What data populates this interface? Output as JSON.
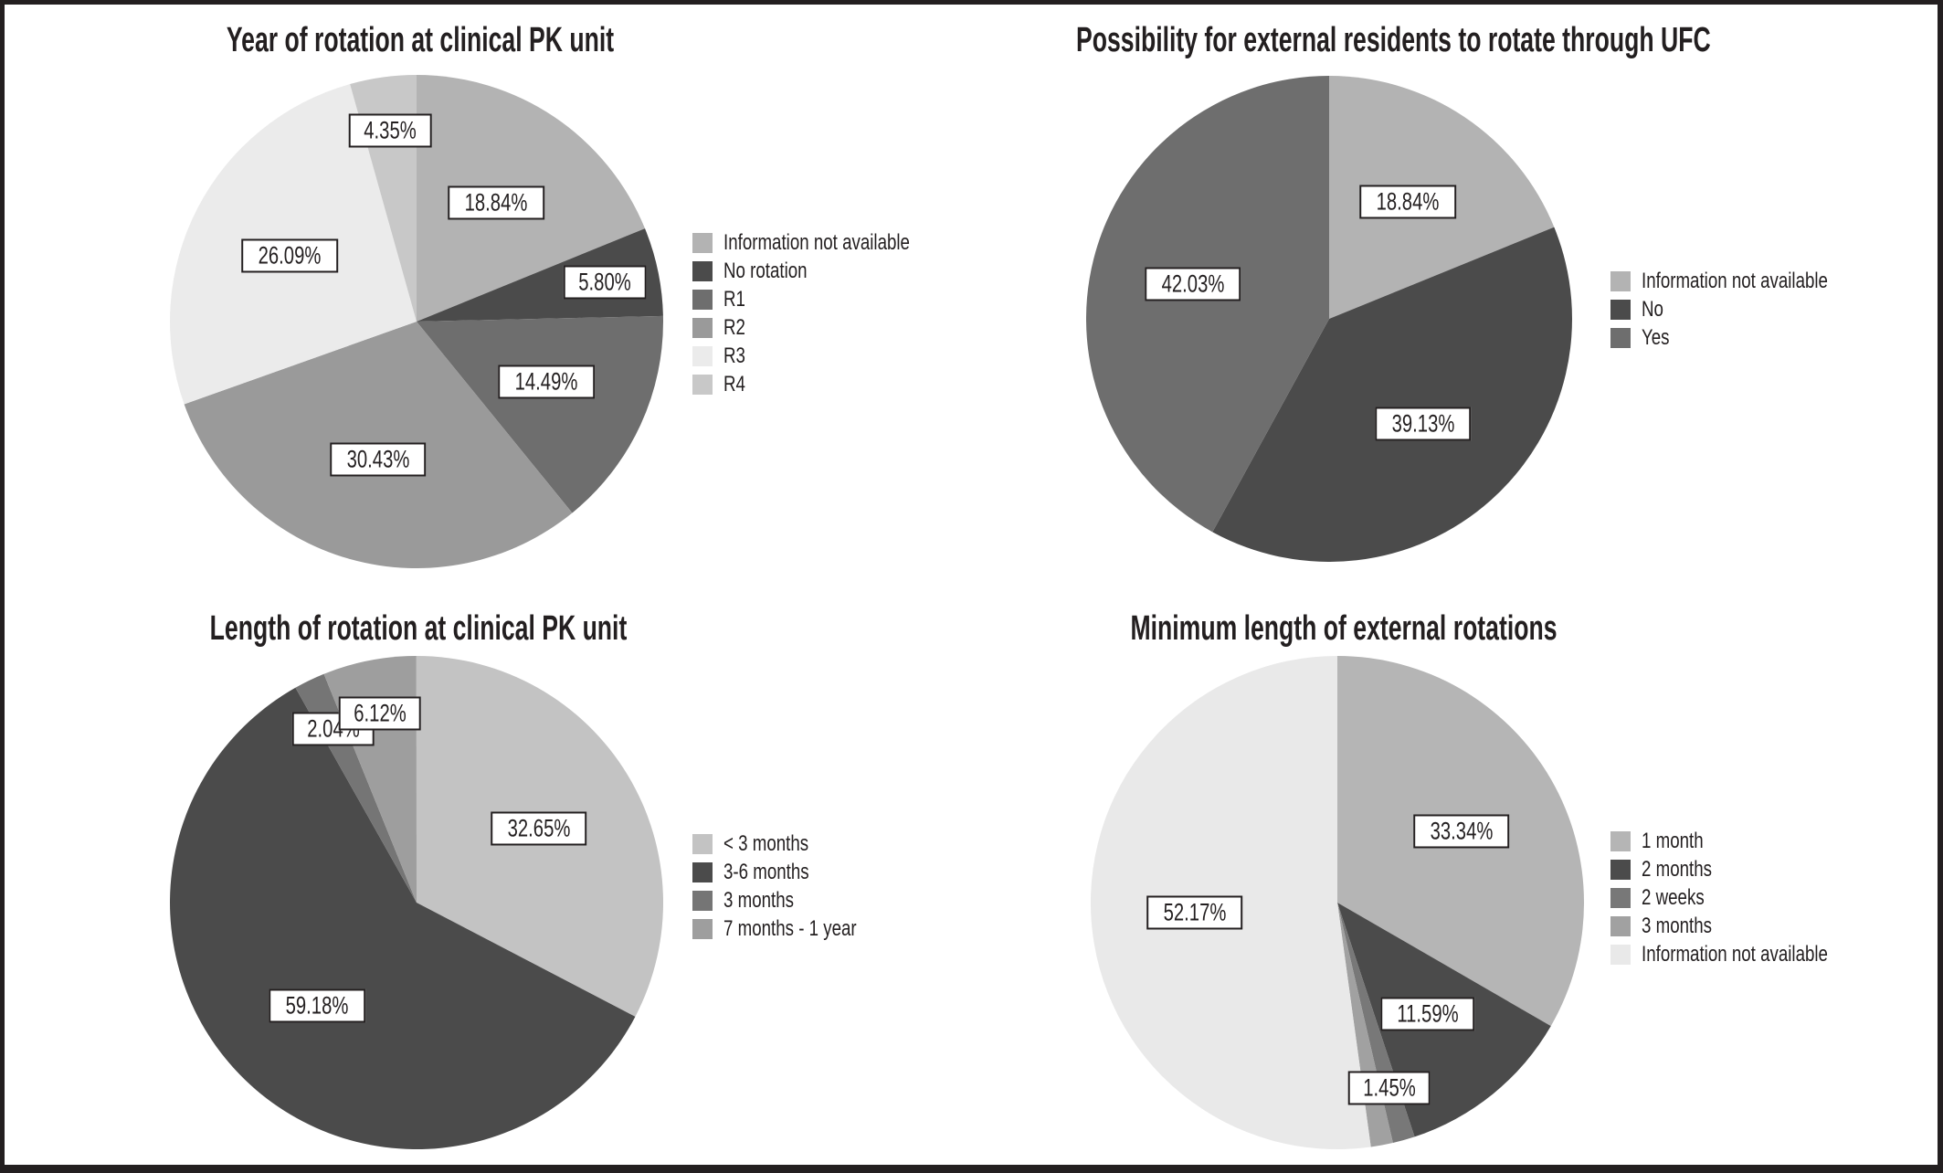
{
  "figure": {
    "background": "#ffffff",
    "frame_color": "#231f20",
    "label_box_border": "#231f20",
    "label_box_fill": "#ffffff"
  },
  "chart_data": [
    {
      "type": "pie",
      "title": "Year of rotation at clinical PK unit",
      "legend_position": "right",
      "start_angle_deg": 0,
      "direction": "clockwise",
      "slices": [
        {
          "name": "Information not available",
          "value": 18.84,
          "label": "18.84%",
          "color": "#b3b3b3"
        },
        {
          "name": "No rotation",
          "value": 5.8,
          "label": "5.80%",
          "color": "#4b4b4b"
        },
        {
          "name": "R1",
          "value": 14.49,
          "label": "14.49%",
          "color": "#6e6e6e"
        },
        {
          "name": "R2",
          "value": 30.43,
          "label": "30.43%",
          "color": "#9a9a9a"
        },
        {
          "name": "R3",
          "value": 26.09,
          "label": "26.09%",
          "color": "#ebebeb"
        },
        {
          "name": "R4",
          "value": 4.35,
          "label": "4.35%",
          "color": "#c8c8c8"
        }
      ]
    },
    {
      "type": "pie",
      "title": "Possibility for external residents to rotate through UFC",
      "legend_position": "right",
      "start_angle_deg": 0,
      "direction": "clockwise",
      "slices": [
        {
          "name": "Information not available",
          "value": 18.84,
          "label": "18.84%",
          "color": "#b3b3b3"
        },
        {
          "name": "No",
          "value": 39.13,
          "label": "39.13%",
          "color": "#4b4b4b"
        },
        {
          "name": "Yes",
          "value": 42.03,
          "label": "42.03%",
          "color": "#6e6e6e"
        }
      ]
    },
    {
      "type": "pie",
      "title": "Length of rotation at clinical PK unit",
      "legend_position": "right",
      "start_angle_deg": 0,
      "direction": "clockwise",
      "slices": [
        {
          "name": "< 3 months",
          "value": 32.65,
          "label": "32.65%",
          "color": "#c3c3c3"
        },
        {
          "name": "3-6 months",
          "value": 59.18,
          "label": "59.18%",
          "color": "#4b4b4b"
        },
        {
          "name": "3 months",
          "value": 2.04,
          "label": "2.04%",
          "color": "#757575"
        },
        {
          "name": "7 months - 1 year",
          "value": 6.12,
          "label": "6.12%",
          "color": "#9e9e9e"
        }
      ]
    },
    {
      "type": "pie",
      "title": "Minimum length of external rotations",
      "legend_position": "right",
      "start_angle_deg": 0,
      "direction": "clockwise",
      "slices": [
        {
          "name": "1 month",
          "value": 33.34,
          "label": "33.34%",
          "color": "#b5b5b5"
        },
        {
          "name": "2 months",
          "value": 11.59,
          "label": "11.59%",
          "color": "#4b4b4b"
        },
        {
          "name": "2 weeks",
          "value": 1.45,
          "label": "1.45%",
          "color": "#787878"
        },
        {
          "name": "3 months",
          "value": 1.45,
          "label": null,
          "color": "#a1a1a1"
        },
        {
          "name": "Information not available",
          "value": 52.17,
          "label": "52.17%",
          "color": "#e9e9e9"
        }
      ]
    }
  ]
}
